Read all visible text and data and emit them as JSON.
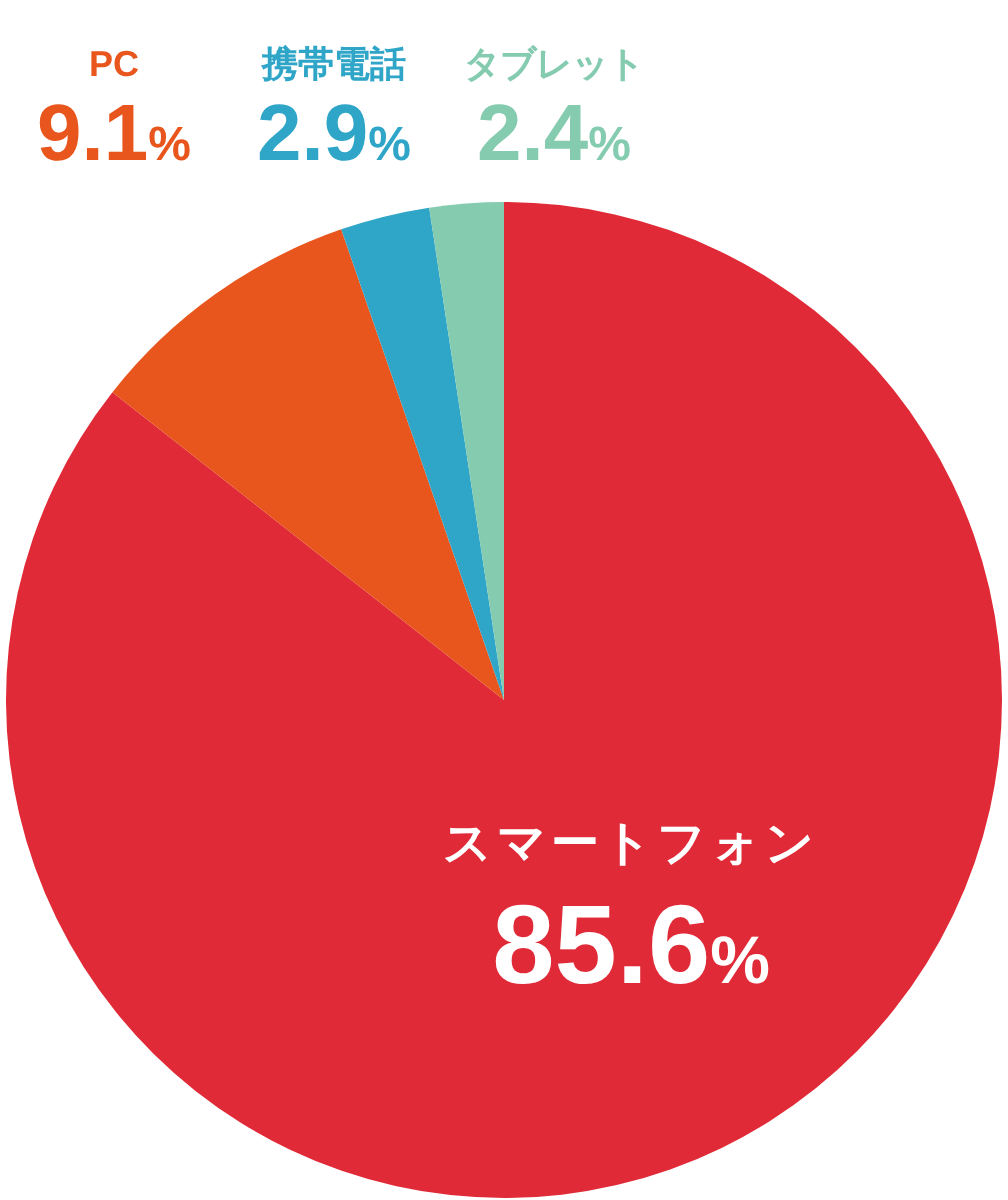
{
  "chart_data": {
    "type": "pie",
    "categories": [
      "スマートフォン",
      "PC",
      "携帯電話",
      "タブレット"
    ],
    "values": [
      85.6,
      9.1,
      2.9,
      2.4
    ],
    "value_labels": [
      "85.6%",
      "9.1%",
      "2.9%",
      "2.4%"
    ],
    "colors": [
      "#e12a37",
      "#e8561d",
      "#2fa6c8",
      "#84cbb0"
    ]
  }
}
